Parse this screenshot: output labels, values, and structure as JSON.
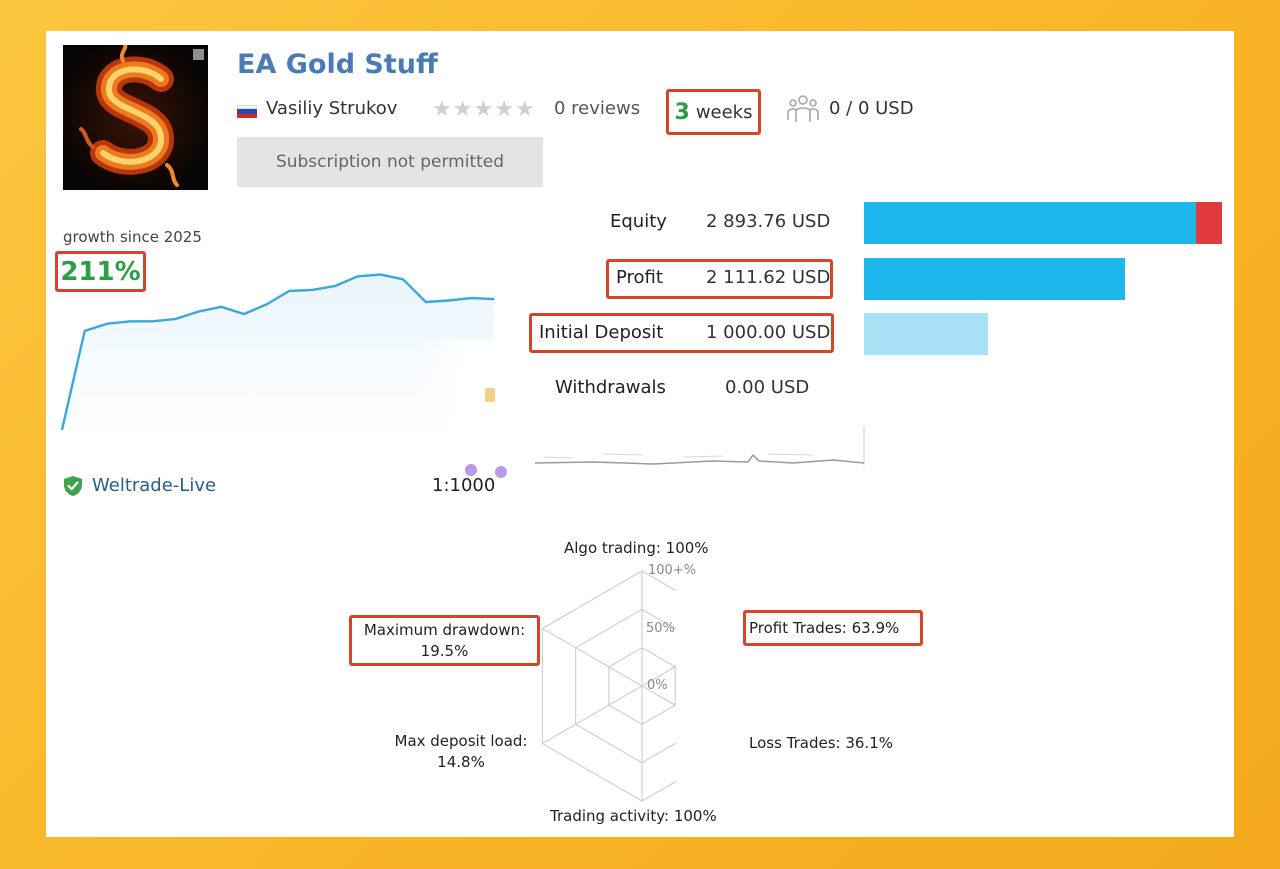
{
  "header": {
    "title": "EA Gold Stuff",
    "logo_icon": "fire-letter-s-logo",
    "author": "Vasiliy Strukov",
    "country_flag": "russia-flag-icon",
    "rating": {
      "value": 0,
      "max": 5
    },
    "reviews_label": "0 reviews",
    "age_number": "3",
    "age_unit": "weeks",
    "subscribers_label": "0 / 0 USD",
    "subscribers_icon": "subscribers-icon",
    "subscribe_button_label": "Subscription not permitted"
  },
  "growth": {
    "label": "growth since 2025",
    "value": "211%",
    "line_color": "#3BA8DA",
    "fill_color": "#EAF5FC"
  },
  "account": {
    "server": "Weltrade-Live",
    "server_icon": "verified-shield-icon",
    "leverage": "1:1000"
  },
  "metrics": [
    {
      "key": "equity",
      "label": "Equity",
      "value": "2 893.76 USD",
      "amount": 2893.76,
      "highlighted": false
    },
    {
      "key": "profit",
      "label": "Profit",
      "value": "2 111.62 USD",
      "amount": 2111.62,
      "highlighted": true
    },
    {
      "key": "initial_deposit",
      "label": "Initial Deposit",
      "value": "1 000.00 USD",
      "amount": 1000.0,
      "highlighted": true
    },
    {
      "key": "withdrawals",
      "label": "Withdrawals",
      "value": "0.00 USD",
      "amount": 0.0,
      "highlighted": false
    }
  ],
  "colors": {
    "accent_title": "#4B7BB5",
    "growth_green": "#2E9E45",
    "highlight_border": "#D5452A",
    "bar_equity": "#1EB7EC",
    "bar_equity_drawdown": "#E03B3B",
    "bar_profit": "#1EB7EC",
    "bar_deposit": "#A9E1F6"
  },
  "radar": {
    "ticks": [
      "100+%",
      "50%",
      "0%"
    ],
    "axes": [
      {
        "key": "algo",
        "label": "Algo trading: 100%",
        "value": 100
      },
      {
        "key": "profit_trades",
        "label": "Profit Trades: 63.9%",
        "value": 63.9,
        "highlighted": true
      },
      {
        "key": "loss_trades",
        "label": "Loss Trades: 36.1%",
        "value": 36.1
      },
      {
        "key": "activity",
        "label": "Trading activity: 100%",
        "value": 100
      },
      {
        "key": "deposit_load",
        "label_line1": "Max deposit load:",
        "label_line2": "14.8%",
        "value": 14.8
      },
      {
        "key": "drawdown",
        "label_line1": "Maximum drawdown:",
        "label_line2": "19.5%",
        "value": 19.5,
        "highlighted": true
      }
    ]
  },
  "chart_data": {
    "type": "area",
    "title": "growth since 2025",
    "xlabel": "",
    "ylabel": "",
    "x": [
      0,
      1,
      2,
      3,
      4,
      5,
      6,
      7,
      8,
      9,
      10,
      11,
      12,
      13,
      14,
      15,
      16,
      17,
      18,
      19
    ],
    "series": [
      {
        "values": [
          -60,
          145,
          160,
          165,
          165,
          170,
          185,
          195,
          180,
          200,
          228,
          230,
          238,
          258,
          262,
          252,
          205,
          208,
          213,
          211
        ]
      }
    ],
    "ylim": [
      -75,
      290
    ],
    "grid": false,
    "legend": "none"
  }
}
